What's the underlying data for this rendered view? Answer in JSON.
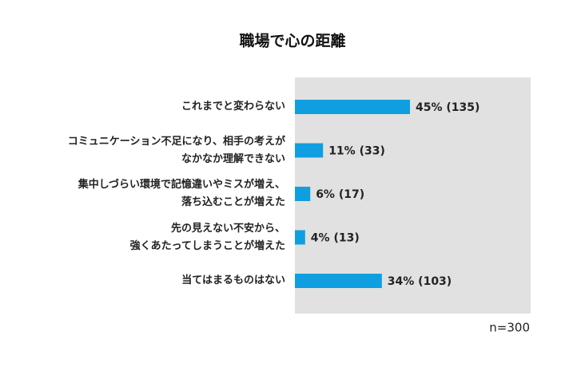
{
  "chart_data": {
    "type": "bar",
    "orientation": "horizontal",
    "title": "職場で心の距離",
    "categories": [
      "これまでと変わらない",
      "コミュニケーション不足になり、相手の考えが\nなかなか理解できない",
      "集中しづらい環境で記憶違いやミスが増え、\n落ち込むことが増えた",
      "先の見えない不安から、\n強くあたってしまうことが増えた",
      "当てはまるものはない"
    ],
    "values": [
      45,
      11,
      6,
      4,
      34
    ],
    "value_labels": [
      "45% (135)",
      "11% (33)",
      "6% (17)",
      "4% (13)",
      "34% (103)"
    ],
    "color": "#0f9fe0",
    "note": "n=300"
  }
}
